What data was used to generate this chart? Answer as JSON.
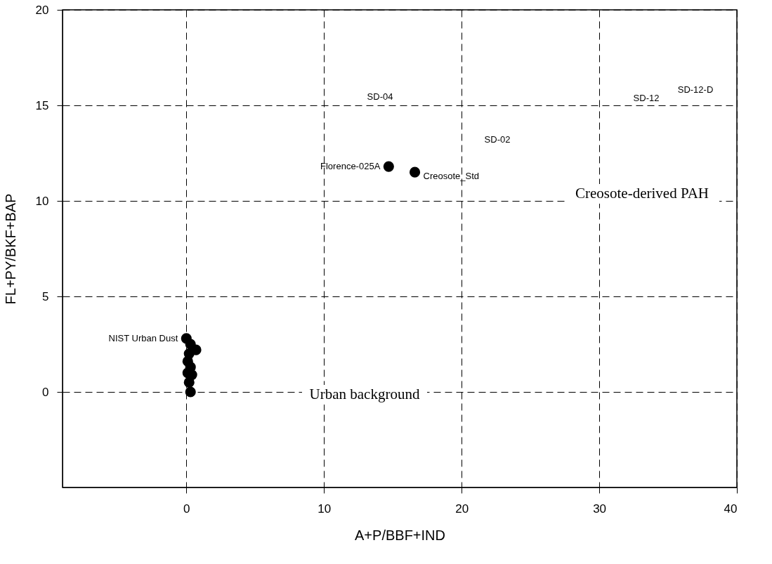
{
  "chart_data": {
    "type": "scatter",
    "xlabel": "A+P/BBF+IND",
    "ylabel": "FL+PY/BKF+BAP",
    "xlim": [
      -9,
      40
    ],
    "ylim": [
      -5,
      20
    ],
    "xticks": [
      0,
      10,
      20,
      30,
      40
    ],
    "yticks": [
      0,
      5,
      10,
      15,
      20
    ],
    "grid": true,
    "marker": "circle",
    "series": [
      {
        "name": "NIST Urban Dust",
        "color": "#000000",
        "x": [
          0,
          0.3,
          0.7,
          0.2,
          0.1,
          0.3,
          0.1,
          0.4,
          0.2,
          0.3
        ],
        "values": [
          2.8,
          2.5,
          2.2,
          2.0,
          1.6,
          1.3,
          1.0,
          0.9,
          0.5,
          0.0
        ]
      },
      {
        "name": "Florence-025A",
        "color": "#000000",
        "x": [
          14.7
        ],
        "values": [
          11.8
        ]
      },
      {
        "name": "Creosote_Std",
        "color": "#000000",
        "x": [
          16.6
        ],
        "values": [
          11.5
        ]
      }
    ],
    "annotations": [
      "SD-04",
      "SD-02",
      "SD-12",
      "SD-12-D",
      "Creosote-derived PAH",
      "Urban background"
    ]
  }
}
